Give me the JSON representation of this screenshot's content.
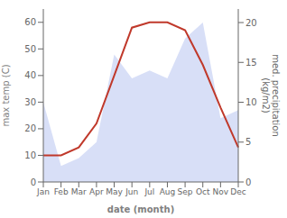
{
  "chart_data": {
    "type": "line",
    "categories": [
      "Jan",
      "Feb",
      "Mar",
      "Apr",
      "May",
      "Jun",
      "Jul",
      "Aug",
      "Sep",
      "Oct",
      "Nov",
      "Dec"
    ],
    "series": [
      {
        "type": "area",
        "axis": "y2",
        "color": "#b8c4f0",
        "values": [
          10,
          2,
          3,
          5,
          16,
          13,
          14,
          13,
          18,
          20,
          8,
          9
        ]
      },
      {
        "type": "line",
        "axis": "y",
        "color": "#c0392b",
        "values": [
          10,
          10,
          13,
          22,
          40,
          58,
          60,
          60,
          57,
          44,
          28,
          13
        ]
      }
    ],
    "xlabel": "date (month)",
    "ylabel": "max temp (C)",
    "y2label": "med. precipitation\n(kg/m2)",
    "ylim": [
      0,
      65
    ],
    "yticks": [
      0,
      10,
      20,
      30,
      40,
      50,
      60
    ],
    "y2lim": [
      0,
      21.7
    ],
    "y2ticks": [
      0,
      5,
      10,
      15,
      20
    ],
    "grid": false
  }
}
